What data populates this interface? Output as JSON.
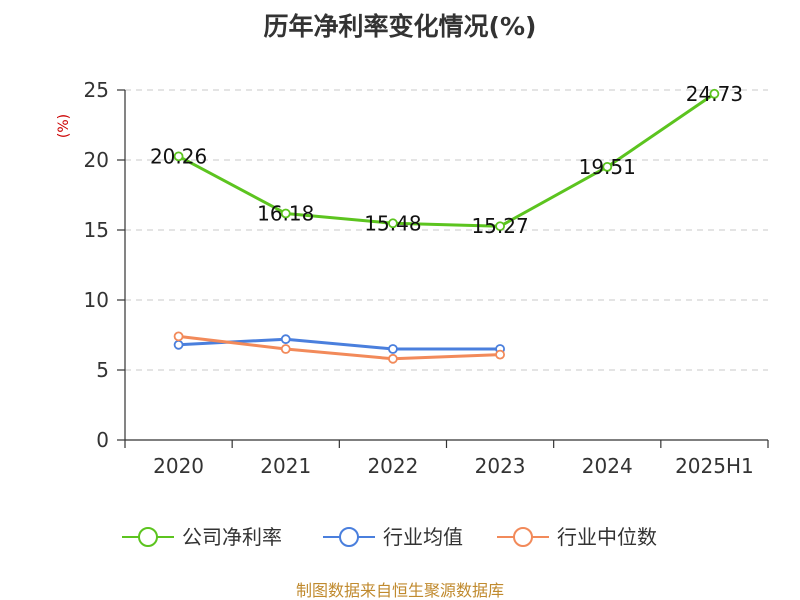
{
  "colors": {
    "company": "#5cc41f",
    "industry_avg": "#4a7fdd",
    "industry_median": "#f28a5a",
    "grid": "#c8c8c8",
    "axis": "#333333",
    "source": "#c08a2e",
    "ylabel": "#cc0000"
  },
  "chart_data": {
    "type": "line",
    "title": "历年净利率变化情况(%)",
    "ylabel": "(%)",
    "categories": [
      "2020",
      "2021",
      "2022",
      "2023",
      "2024",
      "2025H1"
    ],
    "ylim": [
      0,
      25
    ],
    "yticks": [
      "0",
      "5",
      "10",
      "15",
      "20",
      "25"
    ],
    "grid": true,
    "legend_position": "bottom",
    "series": [
      {
        "name": "公司净利率",
        "color": "#5cc41f",
        "values": [
          20.26,
          16.18,
          15.48,
          15.27,
          19.51,
          24.73
        ],
        "labels": [
          "20.26",
          "16.18",
          "15.48",
          "15.27",
          "19.51",
          "24.73"
        ]
      },
      {
        "name": "行业均值",
        "color": "#4a7fdd",
        "values": [
          6.8,
          7.2,
          6.5,
          6.5,
          null,
          null
        ],
        "labels": []
      },
      {
        "name": "行业中位数",
        "color": "#f28a5a",
        "values": [
          7.4,
          6.5,
          5.8,
          6.1,
          null,
          null
        ],
        "labels": []
      }
    ]
  },
  "source": "制图数据来自恒生聚源数据库"
}
